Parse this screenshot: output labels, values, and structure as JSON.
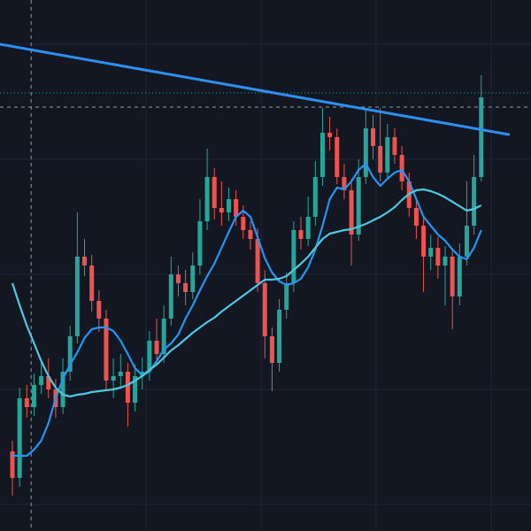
{
  "chart_data": {
    "type": "candlestick",
    "xlim": [
      -1.72,
      71.9
    ],
    "ylim": [
      0,
      600
    ],
    "up_color": "#26a69a",
    "down_color": "#ef5350",
    "open": [
      90,
      60,
      150,
      140,
      165,
      175,
      160,
      140,
      180,
      220,
      310,
      300,
      260,
      240,
      170,
      175,
      180,
      145,
      175,
      180,
      215,
      200,
      240,
      290,
      280,
      270,
      300,
      350,
      400,
      365,
      360,
      375,
      355,
      340,
      330,
      280,
      220,
      190,
      250,
      280,
      340,
      330,
      355,
      400,
      450,
      445,
      400,
      385,
      335,
      400,
      455,
      435,
      405,
      445,
      425,
      395,
      365,
      345,
      310,
      320,
      300,
      310,
      265,
      310,
      345,
      400
    ],
    "high": [
      102,
      162,
      165,
      178,
      190,
      195,
      172,
      195,
      232,
      360,
      330,
      312,
      272,
      250,
      195,
      200,
      190,
      188,
      196,
      226,
      240,
      255,
      310,
      300,
      295,
      315,
      375,
      432,
      410,
      395,
      388,
      385,
      368,
      350,
      342,
      295,
      230,
      262,
      292,
      350,
      355,
      378,
      418,
      478,
      468,
      455,
      415,
      398,
      420,
      478,
      470,
      478,
      460,
      455,
      435,
      405,
      375,
      355,
      335,
      332,
      322,
      320,
      325,
      395,
      425,
      515
    ],
    "low": [
      40,
      50,
      128,
      130,
      155,
      150,
      128,
      132,
      170,
      212,
      288,
      248,
      225,
      160,
      150,
      162,
      118,
      135,
      160,
      170,
      188,
      190,
      232,
      265,
      255,
      262,
      290,
      340,
      352,
      345,
      350,
      345,
      330,
      318,
      270,
      195,
      158,
      180,
      240,
      270,
      318,
      322,
      345,
      390,
      430,
      392,
      375,
      300,
      328,
      392,
      420,
      395,
      398,
      415,
      385,
      355,
      330,
      270,
      295,
      285,
      255,
      228,
      255,
      300,
      335,
      395
    ],
    "close": [
      60,
      150,
      140,
      165,
      175,
      160,
      140,
      180,
      220,
      310,
      300,
      260,
      240,
      170,
      175,
      180,
      145,
      175,
      180,
      215,
      200,
      240,
      290,
      280,
      270,
      300,
      350,
      400,
      365,
      360,
      375,
      355,
      340,
      330,
      280,
      220,
      190,
      250,
      280,
      340,
      330,
      355,
      400,
      450,
      445,
      400,
      385,
      335,
      400,
      455,
      435,
      405,
      445,
      425,
      395,
      365,
      345,
      310,
      320,
      300,
      310,
      265,
      310,
      345,
      400,
      490
    ],
    "series": [
      {
        "color": "#2196f3",
        "values": [
          85,
          85,
          85,
          92,
          102,
          122,
          150,
          172,
          188,
          202,
          218,
          228,
          230,
          230,
          226,
          215,
          200,
          184,
          176,
          180,
          192,
          205,
          212,
          222,
          240,
          255,
          272,
          288,
          302,
          320,
          338,
          355,
          362,
          355,
          332,
          308,
          292,
          282,
          278,
          280,
          285,
          298,
          318,
          345,
          375,
          388,
          386,
          395,
          408,
          415,
          400,
          390,
          398,
          405,
          408,
          395,
          375,
          355,
          345,
          335,
          328,
          318,
          310,
          307,
          320,
          340
        ]
      },
      {
        "color": "#4dc8e0",
        "values": [
          280,
          255,
          232,
          212,
          192,
          175,
          162,
          154,
          152,
          154,
          155,
          157,
          158,
          159,
          160,
          162,
          165,
          170,
          175,
          182,
          188,
          196,
          204,
          210,
          217,
          224,
          230,
          236,
          241,
          248,
          254,
          260,
          266,
          272,
          278,
          284,
          284,
          285,
          288,
          295,
          302,
          310,
          320,
          330,
          336,
          338,
          340,
          341,
          344,
          347,
          351,
          355,
          360,
          366,
          374,
          381,
          385,
          386,
          384,
          381,
          377,
          372,
          367,
          362,
          364,
          368
        ]
      }
    ],
    "trend_line": {
      "color": "#2f8ff0",
      "x": [
        -1.72,
        68.8
      ],
      "values": [
        550,
        448
      ]
    },
    "price_line": {
      "color": "#26a69a",
      "value": 495
    },
    "crosshair": {
      "x": 2.6,
      "y": 479
    }
  }
}
